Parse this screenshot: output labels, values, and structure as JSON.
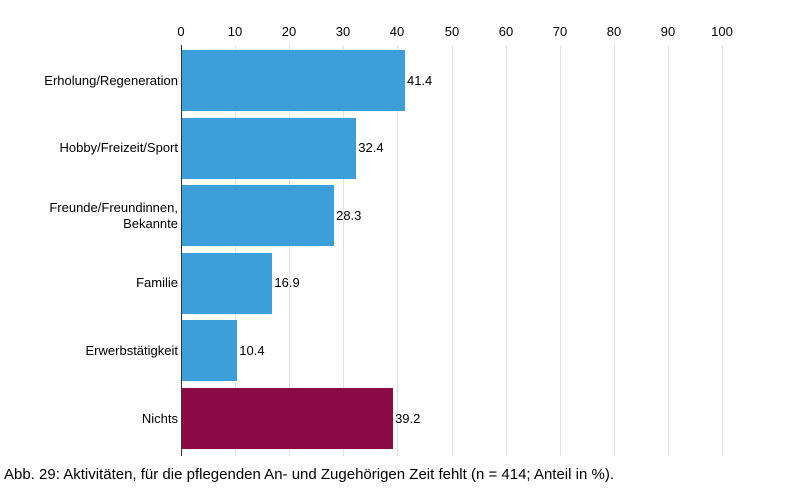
{
  "caption": "Abb. 29: Aktivitäten, für die pflegenden An- und Zugehörigen Zeit fehlt (n = 414; Anteil in %).",
  "chart_data": {
    "type": "bar",
    "orientation": "horizontal",
    "title": "",
    "xlabel": "",
    "ylabel": "",
    "categories": [
      "Erholung/Regeneration",
      "Hobby/Freizeit/Sport",
      "Freunde/Freundinnen,\nBekannte",
      "Familie",
      "Erwerbstätigkeit",
      "Nichts"
    ],
    "values": [
      41.4,
      32.4,
      28.3,
      16.9,
      10.4,
      39.2
    ],
    "colors": [
      "#3d9fd9",
      "#3d9fd9",
      "#3d9fd9",
      "#3d9fd9",
      "#3d9fd9",
      "#8b0a46"
    ],
    "xlim": [
      0,
      100
    ],
    "xticks": [
      0,
      10,
      20,
      30,
      40,
      50,
      60,
      70,
      80,
      90,
      100
    ],
    "xaxis_position": "top",
    "grid": true,
    "legend": "none"
  }
}
